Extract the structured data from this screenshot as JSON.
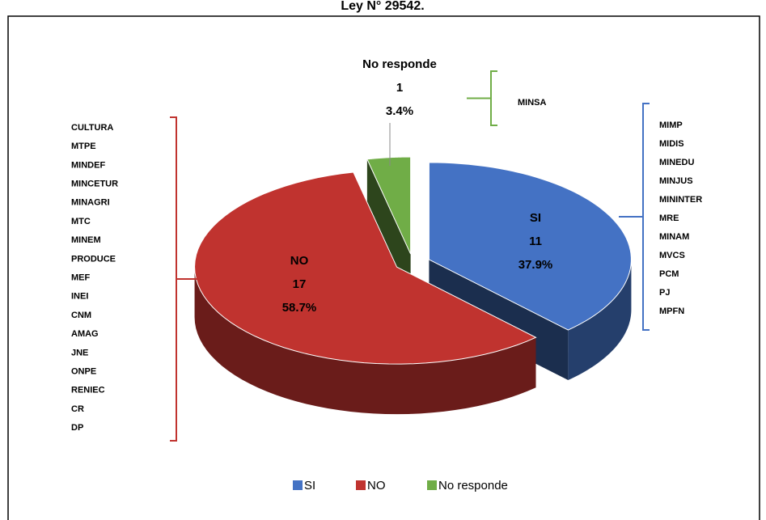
{
  "chart_data": {
    "type": "pie3d",
    "title": "Ley N° 29542.",
    "categories": [
      "SI",
      "NO",
      "No responde"
    ],
    "values": [
      11,
      17,
      1
    ],
    "percent_values": [
      37.9,
      58.7,
      3.4
    ],
    "percent_labels": [
      "37.9%",
      "58.7%",
      "3.4%"
    ],
    "colors": [
      "#4472c4",
      "#c0332f",
      "#70ad47"
    ],
    "members": [
      [
        "MIMP",
        "MIDIS",
        "MINEDU",
        "MINJUS",
        "MININTER",
        "MRE",
        "MINAM",
        "MVCS",
        "PCM",
        "PJ",
        "MPFN"
      ],
      [
        "CULTURA",
        "MTPE",
        "MINDEF",
        "MINCETUR",
        "MINAGRI",
        "MTC",
        "MINEM",
        "PRODUCE",
        "MEF",
        "INEI",
        "CNM",
        "AMAG",
        "JNE",
        "ONPE",
        "RENIEC",
        "CR",
        "DP"
      ],
      [
        "MINSA"
      ]
    ],
    "legend": "bottom"
  }
}
